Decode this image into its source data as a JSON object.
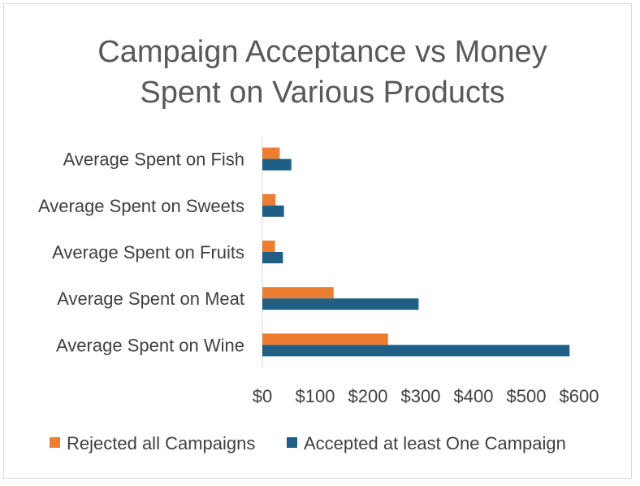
{
  "chart_data": {
    "type": "bar",
    "orientation": "horizontal",
    "title_lines": [
      "Campaign Acceptance vs Money",
      "Spent on Various Products"
    ],
    "categories": [
      "Average Spent on Fish",
      "Average Spent on Sweets",
      "Average Spent on Fruits",
      "Average Spent on Meat",
      "Average Spent on Wine"
    ],
    "series": [
      {
        "name": "Rejected all Campaigns",
        "color": "#ed7d31",
        "values": [
          33,
          25,
          24,
          135,
          238
        ]
      },
      {
        "name": "Accepted at least One Campaign",
        "color": "#1f5f85",
        "values": [
          55,
          41,
          39,
          296,
          582
        ]
      }
    ],
    "xlim": [
      0,
      600
    ],
    "ticks": [
      0,
      100,
      200,
      300,
      400,
      500,
      600
    ],
    "tick_labels": [
      "$0",
      "$100",
      "$200",
      "$300",
      "$400",
      "$500",
      "$600"
    ],
    "axis_color": "#d9d9d9",
    "grid": false,
    "legend_position": "bottom"
  }
}
